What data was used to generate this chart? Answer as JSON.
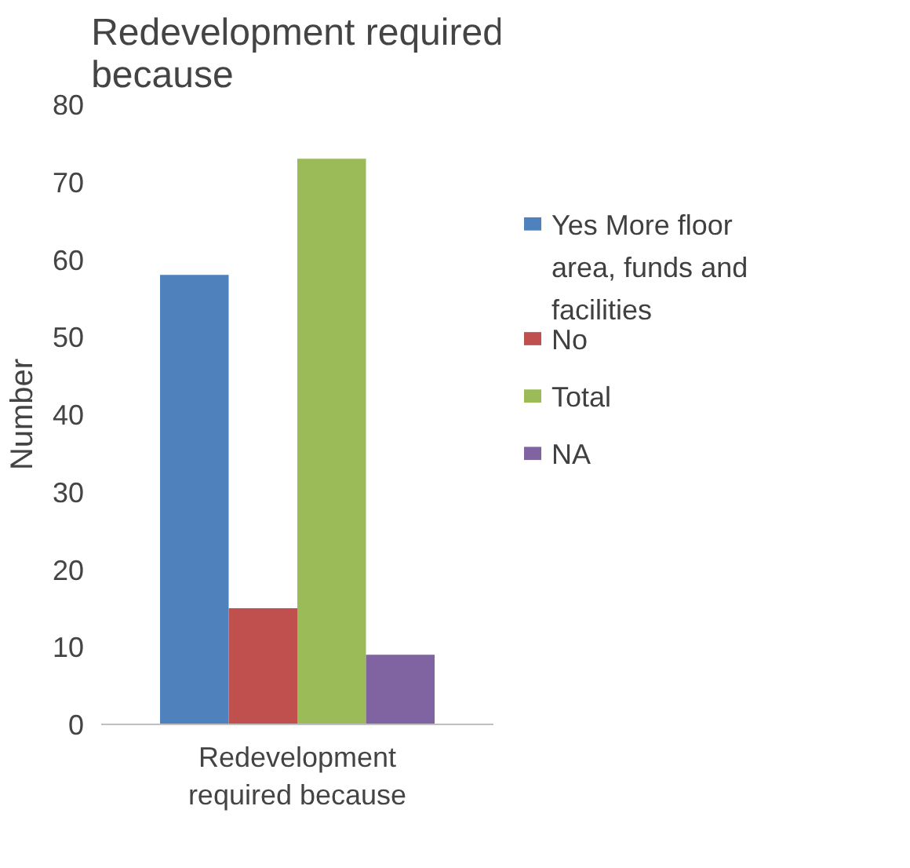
{
  "chart_data": {
    "type": "bar",
    "title": "Redevelopment required because",
    "ylabel": "Number",
    "categories": [
      "Redevelopment required because"
    ],
    "series": [
      {
        "name": "Yes More floor area, funds and facilities",
        "color": "#4f81bd",
        "values": [
          58
        ]
      },
      {
        "name": "No",
        "color": "#c0504d",
        "values": [
          15
        ]
      },
      {
        "name": "Total",
        "color": "#9bbb59",
        "values": [
          73
        ]
      },
      {
        "name": "NA",
        "color": "#8064a2",
        "values": [
          9
        ]
      }
    ],
    "ylim": [
      0,
      80
    ],
    "yticks": [
      0,
      10,
      20,
      30,
      40,
      50,
      60,
      70,
      80
    ],
    "grid": false,
    "legend": "right"
  }
}
